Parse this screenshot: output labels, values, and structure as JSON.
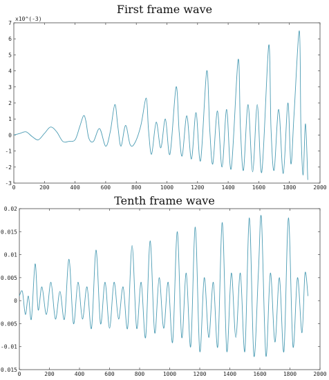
{
  "charts": {
    "top_title": "First frame wave",
    "bottom_title": "Tenth frame wave",
    "top_exponent_label": "x10^(-3)"
  },
  "chart_data": [
    {
      "type": "line",
      "title": "First frame wave",
      "xlim": [
        0,
        2000
      ],
      "ylim": [
        -3,
        7
      ],
      "y_scale_note": "x10^(-3)",
      "xticks": [
        "0",
        "200",
        "400",
        "600",
        "800",
        "1000",
        "1200",
        "1400",
        "1600",
        "1800",
        "2000"
      ],
      "yticks": [
        "-3",
        "-2",
        "-1",
        "0",
        "1",
        "2",
        "3",
        "4",
        "5",
        "6",
        "7"
      ],
      "grid": false,
      "color": "#4a9bb3",
      "series": [
        {
          "x": [
            0,
            40,
            80,
            120,
            160,
            200,
            240,
            280,
            320,
            360,
            400,
            430,
            455,
            470,
            490,
            520,
            560,
            600,
            630,
            660,
            680,
            700,
            730,
            760,
            790,
            830,
            865,
            880,
            900,
            930,
            960,
            990,
            1020,
            1060,
            1080,
            1100,
            1130,
            1160,
            1190,
            1220,
            1260,
            1280,
            1300,
            1330,
            1360,
            1390,
            1420,
            1465,
            1480,
            1500,
            1530,
            1560,
            1590,
            1620,
            1665,
            1680,
            1700,
            1730,
            1760,
            1790,
            1810,
            1830,
            1865,
            1875,
            1890,
            1905,
            1920
          ],
          "y": [
            0,
            0.1,
            0.2,
            -0.1,
            -0.3,
            0.1,
            0.5,
            0.2,
            -0.4,
            -0.4,
            -0.3,
            0.5,
            1.2,
            0.9,
            -0.2,
            -0.4,
            0.4,
            -0.7,
            0.2,
            1.9,
            0.5,
            -0.7,
            0.6,
            -0.6,
            -0.5,
            0.6,
            2.3,
            0.3,
            -1.2,
            0.8,
            -0.8,
            1.0,
            -1.2,
            3.0,
            0.2,
            -1.3,
            1.2,
            -1.5,
            1.4,
            -1.6,
            4.0,
            0.3,
            -1.8,
            1.5,
            -2.0,
            1.6,
            -2.1,
            4.7,
            0.5,
            -2.2,
            1.9,
            -2.3,
            1.9,
            -2.3,
            5.6,
            0.4,
            -2.2,
            1.6,
            -2.4,
            2.0,
            -1.8,
            1.2,
            6.5,
            0.6,
            -2.5,
            0.7,
            -2.8
          ]
        }
      ]
    },
    {
      "type": "line",
      "title": "Tenth frame wave",
      "xlim": [
        0,
        2000
      ],
      "ylim": [
        -0.015,
        0.02
      ],
      "xticks": [
        "0",
        "200",
        "400",
        "600",
        "800",
        "1000",
        "1200",
        "1400",
        "1600",
        "1800",
        "2000"
      ],
      "yticks": [
        "-0.015",
        "-0.01",
        "-0.005",
        "0",
        "0.005",
        "0.01",
        "0.015",
        "0.02"
      ],
      "grid": false,
      "color": "#4a9bb3",
      "series": [
        {
          "x": [
            0,
            20,
            40,
            60,
            80,
            105,
            125,
            150,
            180,
            210,
            240,
            270,
            300,
            330,
            360,
            390,
            420,
            450,
            480,
            510,
            540,
            570,
            600,
            630,
            660,
            690,
            720,
            750,
            780,
            810,
            840,
            870,
            900,
            930,
            960,
            990,
            1020,
            1050,
            1080,
            1110,
            1140,
            1170,
            1200,
            1230,
            1260,
            1290,
            1320,
            1350,
            1380,
            1410,
            1440,
            1470,
            1500,
            1530,
            1560,
            1590,
            1610,
            1640,
            1670,
            1700,
            1730,
            1760,
            1790,
            1820,
            1850,
            1880,
            1900,
            1920
          ],
          "y": [
            0.001,
            0.002,
            -0.003,
            0.001,
            -0.004,
            0.008,
            -0.002,
            0.003,
            -0.003,
            0.004,
            -0.004,
            0.002,
            -0.004,
            0.009,
            -0.005,
            0.004,
            -0.004,
            0.003,
            -0.006,
            0.011,
            -0.005,
            0.004,
            -0.006,
            0.004,
            -0.004,
            0.003,
            -0.006,
            0.012,
            -0.006,
            0.004,
            -0.008,
            0.013,
            -0.007,
            0.005,
            -0.006,
            0.004,
            -0.009,
            0.015,
            -0.008,
            0.006,
            -0.01,
            0.016,
            -0.011,
            0.005,
            -0.008,
            0.004,
            -0.01,
            0.017,
            -0.011,
            0.006,
            -0.008,
            0.006,
            -0.011,
            0.018,
            -0.012,
            0.006,
            0.018,
            -0.012,
            0.006,
            -0.009,
            0.005,
            -0.011,
            0.018,
            -0.01,
            0.005,
            -0.007,
            0.006,
            0.001
          ]
        }
      ]
    }
  ]
}
